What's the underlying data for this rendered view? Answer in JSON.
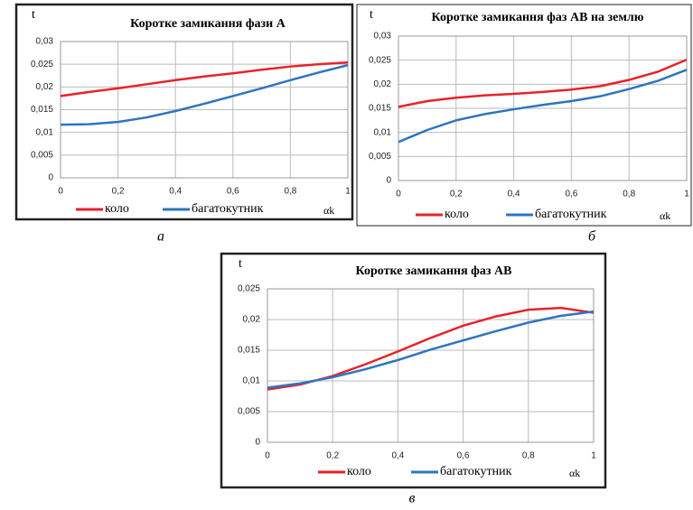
{
  "chart_data": [
    {
      "type": "line",
      "title": "Коротке замикання фази А",
      "y_label": "t",
      "x_label": "αk",
      "caption": "а",
      "x": [
        0,
        0.1,
        0.2,
        0.3,
        0.4,
        0.5,
        0.6,
        0.7,
        0.8,
        0.9,
        1
      ],
      "series": [
        {
          "name": "коло",
          "color": "#e8222a",
          "values": [
            0.018,
            0.0189,
            0.0197,
            0.0206,
            0.0215,
            0.0223,
            0.023,
            0.0238,
            0.0245,
            0.025,
            0.0254
          ]
        },
        {
          "name": "багатокутник",
          "color": "#2e75c0",
          "values": [
            0.0117,
            0.0118,
            0.0123,
            0.0133,
            0.0147,
            0.0163,
            0.018,
            0.0197,
            0.0215,
            0.0232,
            0.0248
          ]
        }
      ],
      "xlim": [
        0,
        1
      ],
      "xticks": [
        0,
        {
          "value": 0.2,
          "label": "0,2"
        },
        {
          "value": 0.4,
          "label": "0,4"
        },
        {
          "value": 0.6,
          "label": "0,6"
        },
        {
          "value": 0.8,
          "label": "0,8"
        },
        1
      ],
      "ylim": [
        0,
        0.03
      ],
      "yticks": [
        0,
        {
          "value": 0.005,
          "label": "0,005"
        },
        {
          "value": 0.01,
          "label": "0,01"
        },
        {
          "value": 0.015,
          "label": "0,015"
        },
        {
          "value": 0.02,
          "label": "0,02"
        },
        {
          "value": 0.025,
          "label": "0,025"
        },
        {
          "value": 0.03,
          "label": "0,03"
        }
      ],
      "grid": true
    },
    {
      "type": "line",
      "title": "Коротке замикання фаз АВ на землю",
      "y_label": "t",
      "x_label": "αk",
      "caption": "б",
      "x": [
        0,
        0.1,
        0.2,
        0.3,
        0.4,
        0.5,
        0.6,
        0.7,
        0.8,
        0.9,
        1
      ],
      "series": [
        {
          "name": "коло",
          "color": "#e8222a",
          "values": [
            0.0153,
            0.0165,
            0.0172,
            0.0177,
            0.018,
            0.0184,
            0.0189,
            0.0196,
            0.0209,
            0.0226,
            0.0251
          ]
        },
        {
          "name": "багатокутник",
          "color": "#2e75c0",
          "values": [
            0.008,
            0.0105,
            0.0125,
            0.0138,
            0.0148,
            0.0157,
            0.0165,
            0.0175,
            0.019,
            0.0207,
            0.023
          ]
        }
      ],
      "xlim": [
        0,
        1
      ],
      "xticks": [
        0,
        {
          "value": 0.2,
          "label": "0,2"
        },
        {
          "value": 0.4,
          "label": "0,4"
        },
        {
          "value": 0.6,
          "label": "0,6"
        },
        {
          "value": 0.8,
          "label": "0,8"
        },
        1
      ],
      "ylim": [
        0,
        0.03
      ],
      "yticks": [
        0,
        {
          "value": 0.005,
          "label": "0,005"
        },
        {
          "value": 0.01,
          "label": "0,01"
        },
        {
          "value": 0.015,
          "label": "0,015"
        },
        {
          "value": 0.02,
          "label": "0,02"
        },
        {
          "value": 0.025,
          "label": "0,025"
        },
        {
          "value": 0.03,
          "label": "0,03"
        }
      ],
      "grid": true
    },
    {
      "type": "line",
      "title": "Коротке замикання фаз АВ",
      "y_label": "t",
      "x_label": "αk",
      "caption": "в",
      "x": [
        0,
        0.1,
        0.2,
        0.3,
        0.4,
        0.5,
        0.6,
        0.7,
        0.8,
        0.9,
        1
      ],
      "series": [
        {
          "name": "коло",
          "color": "#e8222a",
          "values": [
            0.0086,
            0.0094,
            0.0108,
            0.0127,
            0.0148,
            0.017,
            0.019,
            0.0205,
            0.0216,
            0.0219,
            0.0211
          ]
        },
        {
          "name": "багатокутник",
          "color": "#2e75c0",
          "values": [
            0.0089,
            0.0096,
            0.0106,
            0.0119,
            0.0134,
            0.0151,
            0.0166,
            0.0181,
            0.0195,
            0.0206,
            0.0213
          ]
        }
      ],
      "xlim": [
        0,
        1
      ],
      "xticks": [
        0,
        {
          "value": 0.2,
          "label": "0,2"
        },
        {
          "value": 0.4,
          "label": "0,4"
        },
        {
          "value": 0.6,
          "label": "0,6"
        },
        {
          "value": 0.8,
          "label": "0,8"
        },
        1
      ],
      "ylim": [
        0,
        0.025
      ],
      "yticks": [
        0,
        {
          "value": 0.005,
          "label": "0,005"
        },
        {
          "value": 0.01,
          "label": "0,01"
        },
        {
          "value": 0.015,
          "label": "0,015"
        },
        {
          "value": 0.02,
          "label": "0,02"
        },
        {
          "value": 0.025,
          "label": "0,025"
        }
      ],
      "grid": true
    }
  ]
}
